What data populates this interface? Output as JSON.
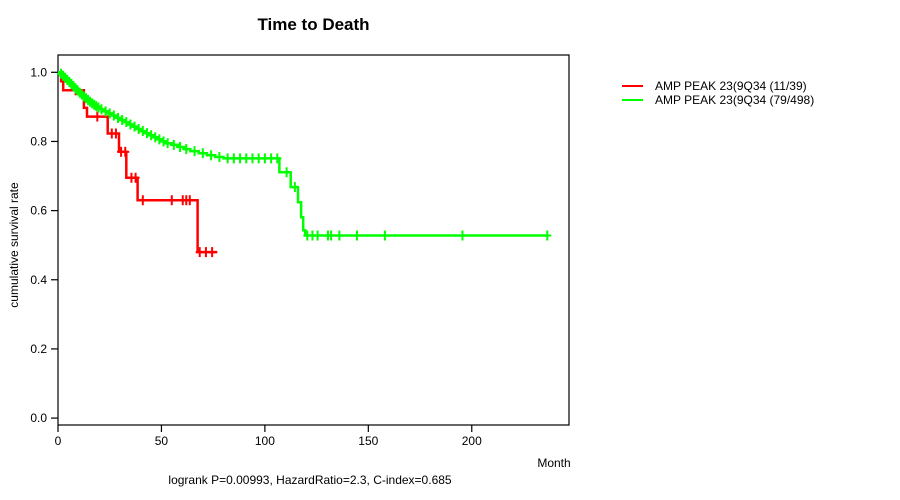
{
  "chart_data": {
    "type": "line",
    "subtype": "kaplan-meier-step",
    "title": "Time to Death",
    "xlabel": "Month",
    "ylabel": "cumulative survival rate",
    "annotation": "logrank P=0.00993, HazardRatio=2.3, C-index=0.685",
    "xticks": [
      0,
      50,
      100,
      150,
      200
    ],
    "yticks": [
      0.0,
      0.2,
      0.4,
      0.6,
      0.8,
      1.0
    ],
    "xlim": [
      0,
      247
    ],
    "ylim": [
      -0.02,
      1.05
    ],
    "grid": false,
    "legend_position": "right-outside",
    "axis_color": "#000000",
    "series": [
      {
        "name": "AMP PEAK 23(9Q34 (11/39)",
        "color": "#ff0000",
        "points": [
          [
            0,
            1.0
          ],
          [
            1.5,
            0.974
          ],
          [
            2.5,
            0.948
          ],
          [
            12.5,
            0.897
          ],
          [
            14,
            0.872
          ],
          [
            24,
            0.823
          ],
          [
            29.5,
            0.77
          ],
          [
            33,
            0.695
          ],
          [
            38.5,
            0.63
          ],
          [
            67.5,
            0.48
          ],
          [
            77,
            0.48
          ]
        ],
        "censor_months": [
          8.5,
          19,
          26,
          28,
          30.5,
          32.5,
          35.5,
          37.5,
          41,
          55,
          60.3,
          62,
          63.7,
          68.5,
          71.5,
          74.5
        ]
      },
      {
        "name": "AMP PEAK 23(9Q34 (79/498)",
        "color": "#00ff00",
        "points": [
          [
            0,
            1.0
          ],
          [
            1,
            0.996
          ],
          [
            2,
            0.99
          ],
          [
            3,
            0.984
          ],
          [
            4,
            0.978
          ],
          [
            5,
            0.972
          ],
          [
            6,
            0.966
          ],
          [
            7,
            0.96
          ],
          [
            8,
            0.953
          ],
          [
            9,
            0.947
          ],
          [
            10,
            0.941
          ],
          [
            11,
            0.936
          ],
          [
            12,
            0.93
          ],
          [
            13,
            0.925
          ],
          [
            14,
            0.92
          ],
          [
            15,
            0.915
          ],
          [
            16,
            0.91
          ],
          [
            17,
            0.906
          ],
          [
            18,
            0.902
          ],
          [
            19,
            0.898
          ],
          [
            20,
            0.893
          ],
          [
            22,
            0.887
          ],
          [
            24,
            0.881
          ],
          [
            26,
            0.875
          ],
          [
            28,
            0.868
          ],
          [
            30,
            0.862
          ],
          [
            32,
            0.856
          ],
          [
            34,
            0.849
          ],
          [
            36,
            0.843
          ],
          [
            38,
            0.836
          ],
          [
            40,
            0.83
          ],
          [
            42,
            0.824
          ],
          [
            44,
            0.818
          ],
          [
            46,
            0.812
          ],
          [
            48,
            0.806
          ],
          [
            50,
            0.8
          ],
          [
            52,
            0.795
          ],
          [
            55,
            0.79
          ],
          [
            58,
            0.784
          ],
          [
            61,
            0.778
          ],
          [
            64,
            0.772
          ],
          [
            68,
            0.766
          ],
          [
            72,
            0.76
          ],
          [
            76,
            0.755
          ],
          [
            80,
            0.751
          ],
          [
            107,
            0.711
          ],
          [
            112.5,
            0.668
          ],
          [
            116,
            0.624
          ],
          [
            117.5,
            0.581
          ],
          [
            118.5,
            0.543
          ],
          [
            119.5,
            0.528
          ],
          [
            237,
            0.528
          ]
        ],
        "censor_months": [
          1.5,
          2.5,
          3.5,
          4.5,
          5.5,
          6.5,
          7.5,
          8.5,
          9.5,
          10.5,
          11.5,
          12.5,
          13.5,
          14.5,
          15.5,
          16.5,
          17.5,
          18.5,
          19.5,
          21,
          23,
          25,
          27,
          29,
          31,
          33,
          35,
          37,
          39,
          41,
          43,
          45,
          47,
          49,
          51,
          53,
          56,
          59,
          62,
          66,
          70,
          74,
          78,
          82,
          85,
          88,
          91,
          94,
          97,
          100,
          103,
          106,
          110.5,
          114.5,
          120.5,
          123,
          125.5,
          130.5,
          132,
          136,
          144.5,
          158,
          195.5,
          236.5
        ]
      }
    ]
  }
}
